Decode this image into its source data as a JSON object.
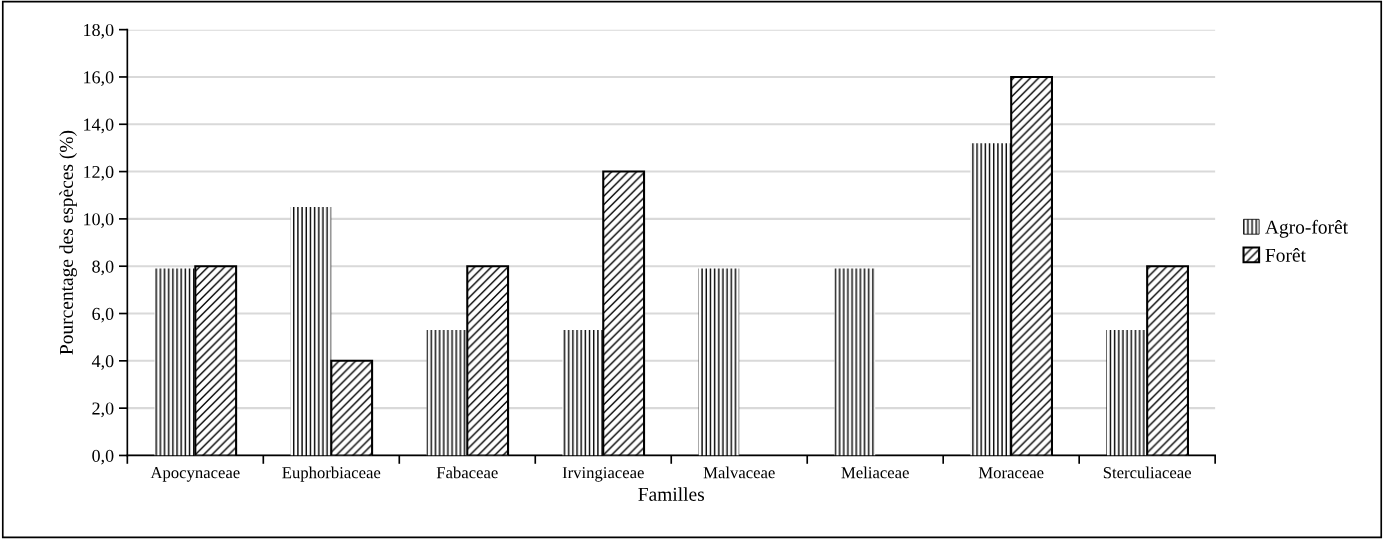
{
  "chart_data": {
    "type": "bar",
    "xlabel": "Familles",
    "ylabel": "Pourcentage des espèces (%)",
    "categories": [
      "Apocynaceae",
      "Euphorbiaceae",
      "Fabaceae",
      "Irvingiaceae",
      "Malvaceae",
      "Meliaceae",
      "Moraceae",
      "Sterculiaceae"
    ],
    "series": [
      {
        "name": "Agro-forêt",
        "color": "#000000",
        "values": [
          7.9,
          10.5,
          5.3,
          5.3,
          7.9,
          7.9,
          13.2,
          5.3
        ]
      },
      {
        "name": "Forêt",
        "color": "#000000",
        "values": [
          8.0,
          4.0,
          8.0,
          12.0,
          null,
          null,
          16.0,
          8.0
        ]
      }
    ],
    "ylim": [
      0,
      18
    ],
    "yticks": [
      {
        "value": 0,
        "label": "0,0"
      },
      {
        "value": 2,
        "label": "2,0"
      },
      {
        "value": 4,
        "label": "4,0"
      },
      {
        "value": 6,
        "label": "6,0"
      },
      {
        "value": 8,
        "label": "8,0"
      },
      {
        "value": 10,
        "label": "10,0"
      },
      {
        "value": 12,
        "label": "12,0"
      },
      {
        "value": 14,
        "label": "14,0"
      },
      {
        "value": 16,
        "label": "16,0"
      },
      {
        "value": 18,
        "label": "18,0"
      }
    ],
    "grid": "y",
    "legend": "right"
  }
}
